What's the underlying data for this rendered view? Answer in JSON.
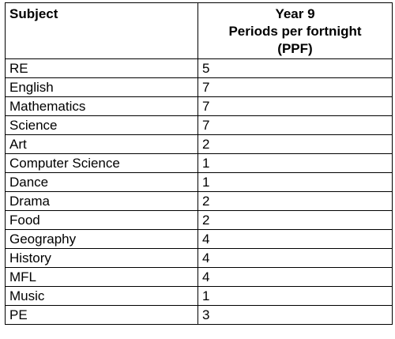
{
  "table": {
    "headers": {
      "subject": "Subject",
      "ppf_lines": [
        "Year 9",
        "Periods per fortnight",
        "(PPF)"
      ]
    },
    "rows": [
      {
        "subject": "RE",
        "ppf": "5"
      },
      {
        "subject": "English",
        "ppf": "7"
      },
      {
        "subject": "Mathematics",
        "ppf": "7"
      },
      {
        "subject": "Science",
        "ppf": "7"
      },
      {
        "subject": "Art",
        "ppf": "2"
      },
      {
        "subject": "Computer Science",
        "ppf": "1"
      },
      {
        "subject": "Dance",
        "ppf": "1"
      },
      {
        "subject": "Drama",
        "ppf": "2"
      },
      {
        "subject": "Food",
        "ppf": "2"
      },
      {
        "subject": "Geography",
        "ppf": "4"
      },
      {
        "subject": "History",
        "ppf": "4"
      },
      {
        "subject": "MFL",
        "ppf": "4"
      },
      {
        "subject": "Music",
        "ppf": "1"
      },
      {
        "subject": "PE",
        "ppf": "3"
      }
    ]
  }
}
